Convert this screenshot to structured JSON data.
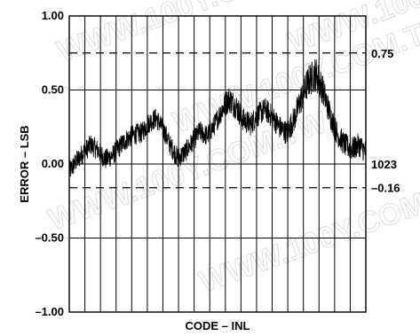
{
  "watermark": "WWW.100Y.COM.TW",
  "chart_data": {
    "type": "line",
    "xlabel": "CODE – INL",
    "ylabel": "ERROR – LSB",
    "xlim": [
      0,
      1023
    ],
    "ylim": [
      -1.0,
      1.0
    ],
    "yticks": [
      "1.00",
      "0.50",
      "0.00",
      "–0.50",
      "–1.00"
    ],
    "yticks_values": [
      1.0,
      0.5,
      0.0,
      -0.5,
      -1.0
    ],
    "vertical_grid_count": 19,
    "grid": true,
    "limits": [
      {
        "value": 0.75,
        "label": "0.75",
        "style": "dashed"
      },
      {
        "value": -0.16,
        "label": "–0.16",
        "style": "dashed"
      }
    ],
    "end_label": "1023",
    "end_label_value": 0.0,
    "series": [
      {
        "color": "#000000",
        "x": [
          0,
          25,
          50,
          75,
          100,
          125,
          150,
          175,
          200,
          225,
          250,
          275,
          300,
          325,
          350,
          375,
          400,
          425,
          450,
          475,
          500,
          525,
          550,
          575,
          600,
          625,
          650,
          675,
          700,
          725,
          750,
          775,
          800,
          825,
          850,
          875,
          900,
          925,
          950,
          975,
          1000,
          1023
        ],
        "y": [
          -0.05,
          0.02,
          0.08,
          0.13,
          0.09,
          0.03,
          0.06,
          0.12,
          0.17,
          0.2,
          0.21,
          0.28,
          0.31,
          0.23,
          0.12,
          0.04,
          0.08,
          0.15,
          0.22,
          0.19,
          0.26,
          0.36,
          0.44,
          0.39,
          0.3,
          0.27,
          0.33,
          0.37,
          0.32,
          0.25,
          0.21,
          0.3,
          0.44,
          0.56,
          0.61,
          0.5,
          0.33,
          0.2,
          0.13,
          0.1,
          0.13,
          0.08
        ],
        "spread": [
          0.07,
          0.07,
          0.07,
          0.07,
          0.07,
          0.07,
          0.07,
          0.07,
          0.07,
          0.07,
          0.07,
          0.07,
          0.07,
          0.07,
          0.07,
          0.07,
          0.07,
          0.07,
          0.07,
          0.07,
          0.07,
          0.08,
          0.09,
          0.09,
          0.08,
          0.08,
          0.08,
          0.08,
          0.08,
          0.08,
          0.08,
          0.09,
          0.1,
          0.11,
          0.12,
          0.1,
          0.09,
          0.08,
          0.08,
          0.08,
          0.08,
          0.08
        ]
      }
    ]
  }
}
